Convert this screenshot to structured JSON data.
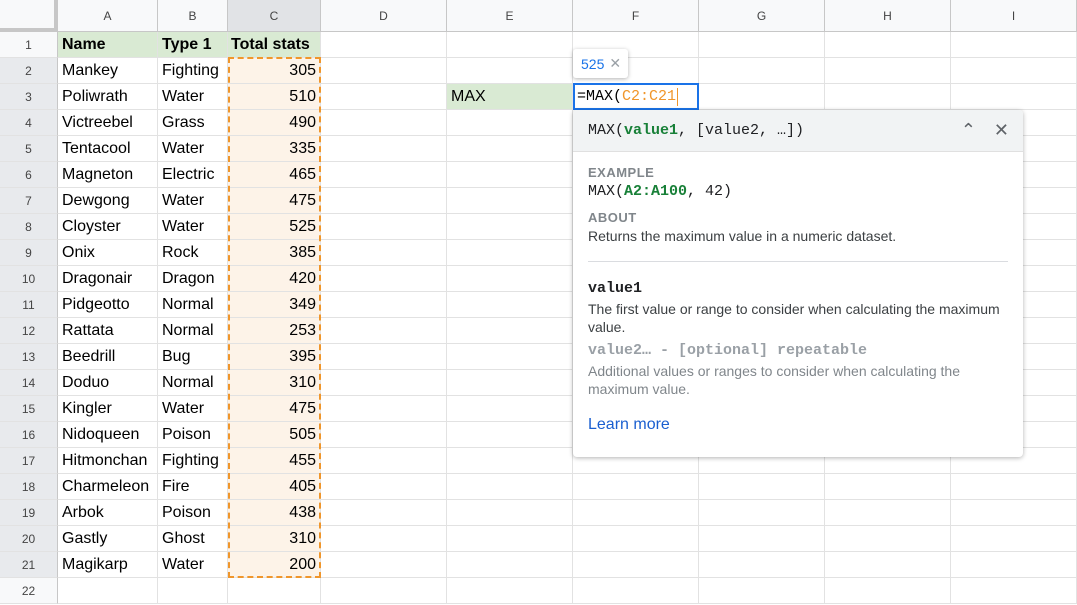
{
  "columns": [
    "A",
    "B",
    "C",
    "D",
    "E",
    "F",
    "G",
    "H",
    "I"
  ],
  "header_row": {
    "name": "Name",
    "type": "Type 1",
    "total": "Total stats"
  },
  "rows": [
    {
      "name": "Mankey",
      "type": "Fighting",
      "total": "305"
    },
    {
      "name": "Poliwrath",
      "type": "Water",
      "total": "510"
    },
    {
      "name": "Victreebel",
      "type": "Grass",
      "total": "490"
    },
    {
      "name": "Tentacool",
      "type": "Water",
      "total": "335"
    },
    {
      "name": "Magneton",
      "type": "Electric",
      "total": "465"
    },
    {
      "name": "Dewgong",
      "type": "Water",
      "total": "475"
    },
    {
      "name": "Cloyster",
      "type": "Water",
      "total": "525"
    },
    {
      "name": "Onix",
      "type": "Rock",
      "total": "385"
    },
    {
      "name": "Dragonair",
      "type": "Dragon",
      "total": "420"
    },
    {
      "name": "Pidgeotto",
      "type": "Normal",
      "total": "349"
    },
    {
      "name": "Rattata",
      "type": "Normal",
      "total": "253"
    },
    {
      "name": "Beedrill",
      "type": "Bug",
      "total": "395"
    },
    {
      "name": "Doduo",
      "type": "Normal",
      "total": "310"
    },
    {
      "name": "Kingler",
      "type": "Water",
      "total": "475"
    },
    {
      "name": "Nidoqueen",
      "type": "Poison",
      "total": "505"
    },
    {
      "name": "Hitmonchan",
      "type": "Fighting",
      "total": "455"
    },
    {
      "name": "Charmeleon",
      "type": "Fire",
      "total": "405"
    },
    {
      "name": "Arbok",
      "type": "Poison",
      "total": "438"
    },
    {
      "name": "Gastly",
      "type": "Ghost",
      "total": "310"
    },
    {
      "name": "Magikarp",
      "type": "Water",
      "total": "200"
    }
  ],
  "row_count": 22,
  "label_cell": "MAX",
  "editor": {
    "prefix": "=MAX(",
    "range": "C2:C21",
    "preview": "525"
  },
  "help": {
    "sig_prefix": "MAX(",
    "sig_arg1": "value1",
    "sig_rest": ", [value2, …])",
    "example_label": "EXAMPLE",
    "ex_prefix": "MAX(",
    "ex_range": "A2:A100",
    "ex_rest": ", 42)",
    "about_label": "ABOUT",
    "about_text": "Returns the maximum value in a numeric dataset.",
    "arg1_name": "value1",
    "arg1_desc": "The first value or range to consider when calculating the maximum value.",
    "arg2_name": "value2… - [optional] repeatable",
    "arg2_desc": "Additional values or ranges to consider when calculating the maximum value.",
    "learn_more": "Learn more"
  },
  "colors": {
    "header_fill": "#d9ead3",
    "range_border": "#f0962b",
    "range_fill": "#fdf3e8",
    "selection": "#1a73e8",
    "arg_green": "#188038"
  }
}
